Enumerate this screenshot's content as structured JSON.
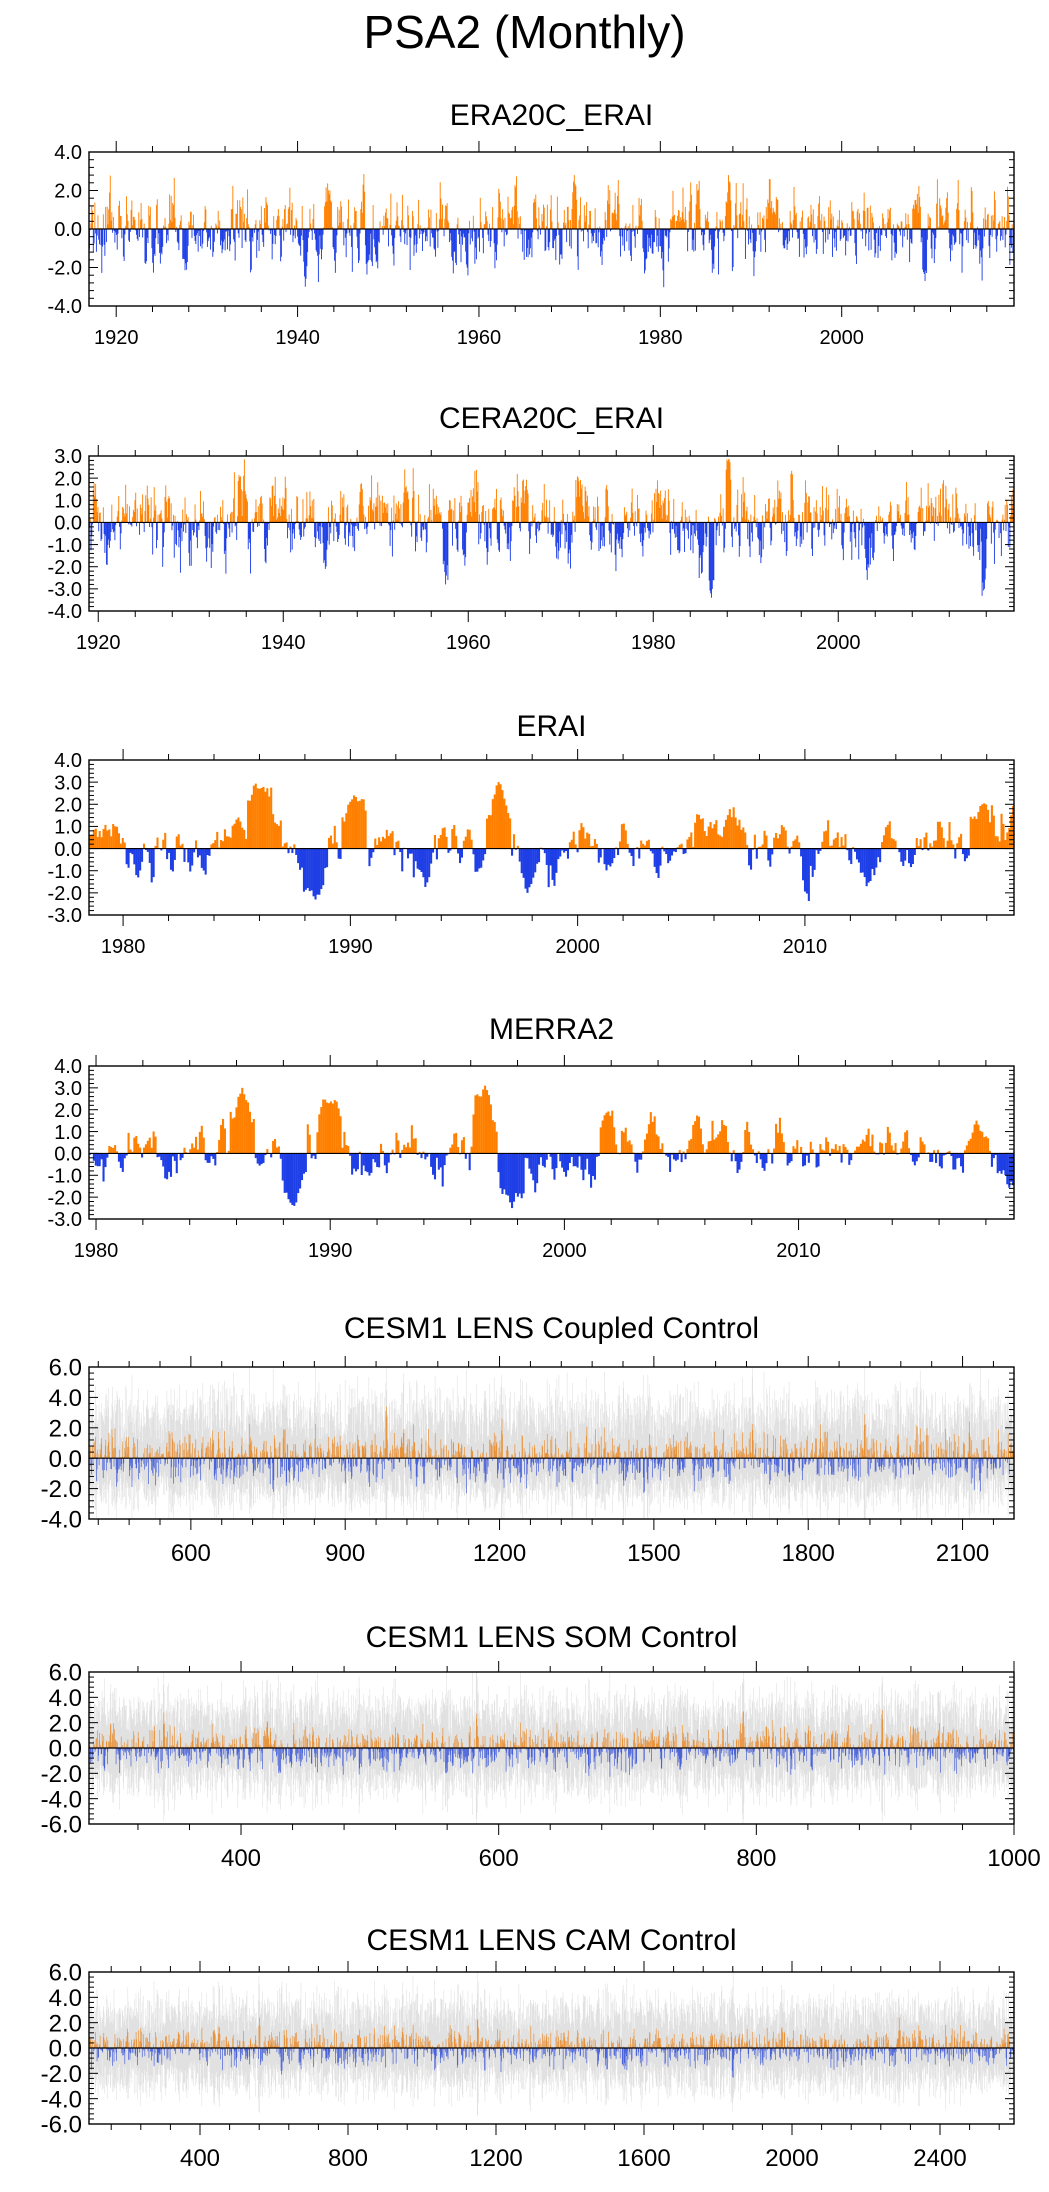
{
  "title": "PSA2 (Monthly)",
  "colors": {
    "positive": "#ff8000",
    "negative": "#1e3ee6",
    "positive_light": "#e8923a",
    "negative_light": "#4a63d8",
    "spread": "#c8c8c8",
    "zero_line": "#000000"
  },
  "chart_data": [
    {
      "type": "bar",
      "title": "ERA20C_ERAI",
      "xlabel": "",
      "ylabel": "",
      "xlim": [
        1917,
        2019
      ],
      "ylim": [
        -4.0,
        4.0
      ],
      "yticks": [
        4.0,
        2.0,
        0.0,
        -2.0,
        -4.0
      ],
      "ytick_labels": [
        "4.0",
        "2.0",
        "0.0",
        "-2.0",
        "-4.0"
      ],
      "xticks": [
        1920,
        1940,
        1960,
        1980,
        2000
      ],
      "xtick_labels": [
        "1920",
        "1940",
        "1960",
        "1980",
        "2000"
      ],
      "style": "dense-bars",
      "spread": false,
      "amplitude": 1.3,
      "peaks": [
        [
          1943.5,
          2.0
        ],
        [
          1940.8,
          -3.0
        ],
        [
          1970.5,
          2.8
        ],
        [
          1987.5,
          2.8
        ],
        [
          2009.2,
          -2.7
        ]
      ]
    },
    {
      "type": "bar",
      "title": "CERA20C_ERAI",
      "xlabel": "",
      "ylabel": "",
      "xlim": [
        1919,
        2019
      ],
      "ylim": [
        -4.0,
        3.0
      ],
      "yticks": [
        3.0,
        2.0,
        1.0,
        0.0,
        -1.0,
        -2.0,
        -3.0,
        -4.0
      ],
      "ytick_labels": [
        "3.0",
        "2.0",
        "1.0",
        "0.0",
        "-1.0",
        "-2.0",
        "-3.0",
        "-4.0"
      ],
      "xticks": [
        1920,
        1940,
        1960,
        1980,
        2000
      ],
      "xtick_labels": [
        "1920",
        "1940",
        "1960",
        "1980",
        "2000"
      ],
      "style": "dense-bars",
      "spread": false,
      "amplitude": 1.2,
      "peaks": [
        [
          1944.5,
          -2.1
        ],
        [
          1988.1,
          2.9
        ],
        [
          1986.3,
          -3.4
        ],
        [
          1957.5,
          -2.8
        ],
        [
          2015.8,
          -3.0
        ]
      ]
    },
    {
      "type": "bar",
      "title": "ERAI",
      "xlabel": "",
      "ylabel": "",
      "xlim": [
        1978.5,
        2019.2
      ],
      "ylim": [
        -3.0,
        4.0
      ],
      "yticks": [
        4.0,
        3.0,
        2.0,
        1.0,
        0.0,
        -1.0,
        -2.0,
        -3.0
      ],
      "ytick_labels": [
        "4.0",
        "3.0",
        "2.0",
        "1.0",
        "0.0",
        "-1.0",
        "-2.0",
        "-3.0"
      ],
      "xticks": [
        1980,
        1990,
        2000,
        2010
      ],
      "xtick_labels": [
        "1980",
        "1990",
        "2000",
        "2010"
      ],
      "style": "smooth-bars",
      "spread": false,
      "amplitude": 1.0,
      "peaks": [
        [
          1996.5,
          3.0
        ],
        [
          1986.0,
          2.7
        ],
        [
          1988.4,
          -2.3
        ],
        [
          1990.1,
          2.4
        ],
        [
          1997.8,
          -2.0
        ],
        [
          2017.8,
          2.0
        ]
      ]
    },
    {
      "type": "bar",
      "title": "MERRA2",
      "xlabel": "",
      "ylabel": "",
      "xlim": [
        1979.7,
        2019.2
      ],
      "ylim": [
        -3.0,
        4.0
      ],
      "yticks": [
        4.0,
        3.0,
        2.0,
        1.0,
        0.0,
        -1.0,
        -2.0,
        -3.0
      ],
      "ytick_labels": [
        "4.0",
        "3.0",
        "2.0",
        "1.0",
        "0.0",
        "-1.0",
        "-2.0",
        "-3.0"
      ],
      "xticks": [
        1980,
        1990,
        2000,
        2010
      ],
      "xtick_labels": [
        "1980",
        "1990",
        "2000",
        "2010"
      ],
      "style": "smooth-bars",
      "spread": false,
      "amplitude": 1.0,
      "peaks": [
        [
          1996.6,
          3.1
        ],
        [
          1986.2,
          3.0
        ],
        [
          1988.4,
          -2.4
        ],
        [
          1989.9,
          2.3
        ],
        [
          1997.8,
          -2.5
        ],
        [
          2017.6,
          1.5
        ]
      ]
    },
    {
      "type": "bar",
      "title": "CESM1 LENS Coupled Control",
      "xlabel": "",
      "ylabel": "",
      "xlim": [
        402,
        2200
      ],
      "ylim": [
        -4.0,
        6.0
      ],
      "yticks": [
        6.0,
        4.0,
        2.0,
        0.0,
        -2.0,
        -4.0
      ],
      "ytick_labels": [
        "6.0",
        "4.0",
        "2.0",
        "0.0",
        "-2.0",
        "-4.0"
      ],
      "xticks": [
        600,
        900,
        1200,
        1500,
        1800,
        2100
      ],
      "xtick_labels": [
        "600",
        "900",
        "1200",
        "1500",
        "1800",
        "2100"
      ],
      "style": "thin-bars",
      "spread": true,
      "amplitude": 1.0,
      "peaks": [
        [
          980,
          3.4
        ],
        [
          1205,
          2.6
        ],
        [
          1910,
          2.9
        ],
        [
          760,
          -2.2
        ],
        [
          1480,
          -2.3
        ]
      ]
    },
    {
      "type": "bar",
      "title": "CESM1 LENS SOM Control",
      "xlabel": "",
      "ylabel": "",
      "xlim": [
        282,
        1000
      ],
      "ylim": [
        -6.0,
        6.0
      ],
      "yticks": [
        6.0,
        4.0,
        2.0,
        0.0,
        -2.0,
        -4.0,
        -6.0
      ],
      "ytick_labels": [
        "6.0",
        "4.0",
        "2.0",
        "0.0",
        "-2.0",
        "-4.0",
        "-6.0"
      ],
      "xticks": [
        400,
        600,
        800,
        1000
      ],
      "xtick_labels": [
        "400",
        "600",
        "800",
        "1000"
      ],
      "style": "thin-bars",
      "spread": true,
      "amplitude": 1.0,
      "peaks": [
        [
          340,
          2.8
        ],
        [
          583,
          2.7
        ],
        [
          790,
          2.9
        ],
        [
          898,
          3.0
        ],
        [
          430,
          -2.0
        ],
        [
          670,
          -2.2
        ]
      ]
    },
    {
      "type": "bar",
      "title": "CESM1 LENS CAM Control",
      "xlabel": "",
      "ylabel": "",
      "xlim": [
        100,
        2600
      ],
      "ylim": [
        -6.0,
        6.0
      ],
      "yticks": [
        6.0,
        4.0,
        2.0,
        0.0,
        -2.0,
        -4.0,
        -6.0
      ],
      "ytick_labels": [
        "6.0",
        "4.0",
        "2.0",
        "0.0",
        "-2.0",
        "-4.0",
        "-6.0"
      ],
      "xticks": [
        400,
        800,
        1200,
        1600,
        2000,
        2400
      ],
      "xtick_labels": [
        "400",
        "800",
        "1200",
        "1600",
        "2000",
        "2400"
      ],
      "style": "thin-bars",
      "spread": true,
      "amplitude": 0.9,
      "peaks": [
        [
          560,
          2.4
        ],
        [
          1150,
          2.3
        ],
        [
          2290,
          2.4
        ],
        [
          1840,
          -2.3
        ],
        [
          620,
          -2.1
        ]
      ]
    }
  ]
}
